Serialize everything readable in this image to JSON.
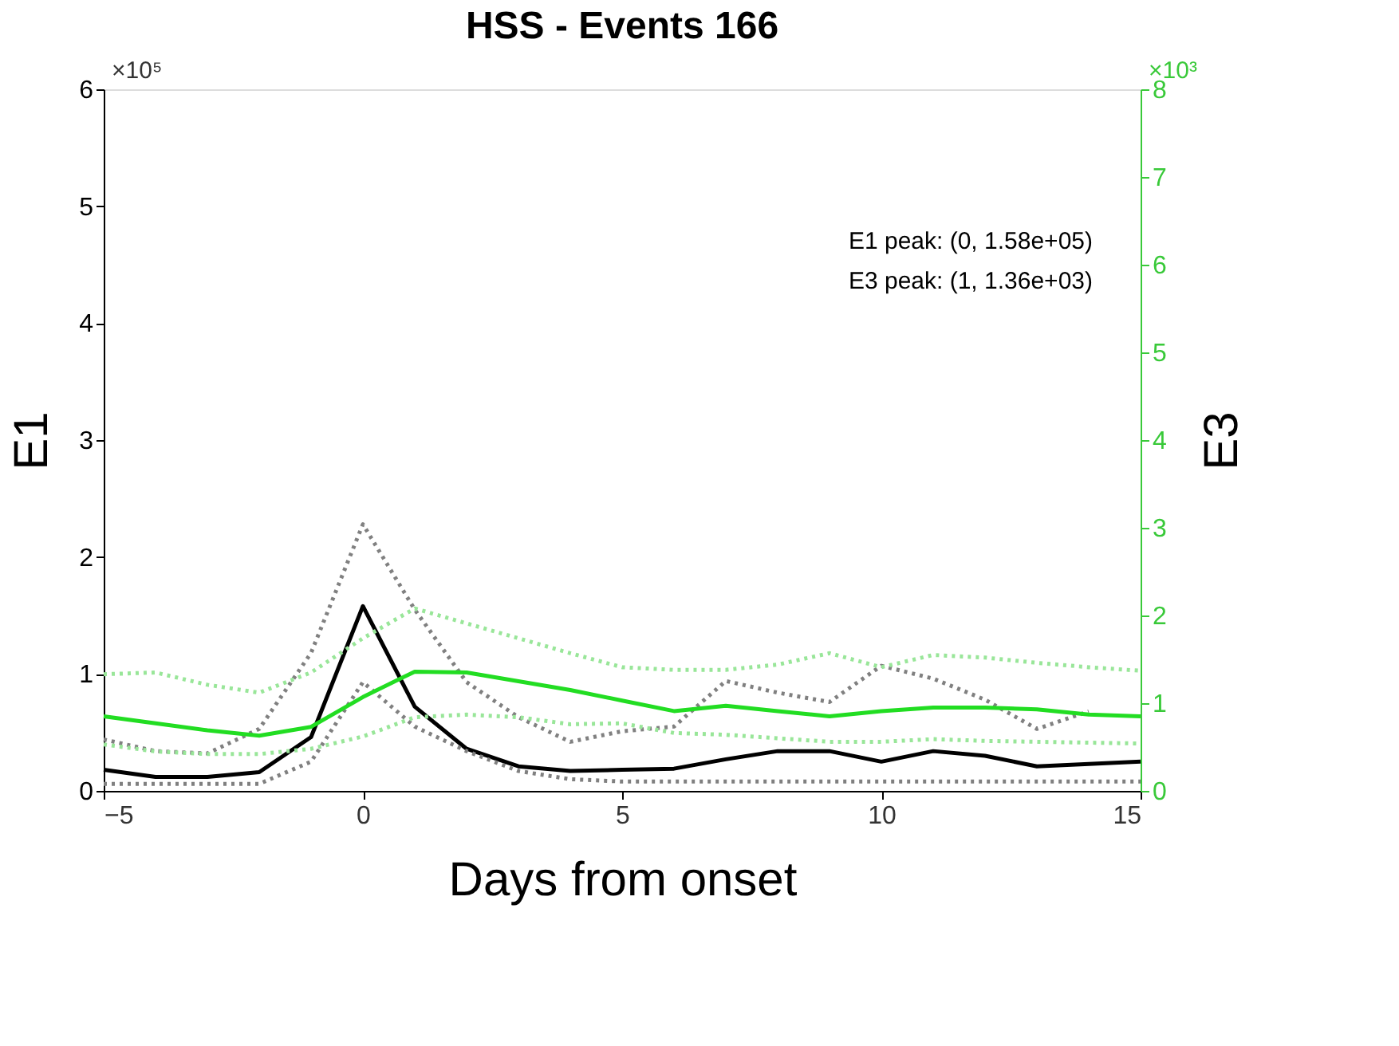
{
  "chart_data": {
    "type": "line",
    "title": "HSS - Events 166",
    "xlabel": "Days from onset",
    "ylabel": "E1",
    "y2label": "E3",
    "annotations": [
      "E1 peak: (0, 1.58e+05)",
      "E3 peak: (1, 1.36e+03)",
      "×10⁵",
      "×10³"
    ],
    "x": [
      -5,
      -4,
      -3,
      -2,
      -1,
      0,
      1,
      2,
      3,
      4,
      5,
      6,
      7,
      8,
      9,
      10,
      11,
      12,
      13,
      14,
      15
    ],
    "xlim": [
      -5,
      15
    ],
    "xticks": [
      -5,
      0,
      5,
      10,
      15
    ],
    "ylim": [
      0,
      6
    ],
    "yticks": [
      0,
      1,
      2,
      3,
      4,
      5,
      6
    ],
    "y2lim": [
      0,
      8
    ],
    "y2ticks": [
      0,
      1,
      2,
      3,
      4,
      5,
      6,
      7,
      8
    ],
    "grid": false,
    "series": [
      {
        "color": "#808080",
        "line_style": "dotted",
        "values": [
          0.44,
          0.34,
          0.32,
          0.53,
          1.18,
          2.28,
          1.55,
          0.93,
          0.63,
          0.42,
          0.51,
          0.55,
          0.94,
          0.84,
          0.76,
          1.07,
          0.96,
          0.78,
          0.53,
          0.68,
          null
        ]
      },
      {
        "color": "#808080",
        "line_style": "dotted",
        "values": [
          0.06,
          0.06,
          0.06,
          0.06,
          0.25,
          0.93,
          0.55,
          0.34,
          0.17,
          0.1,
          0.08,
          0.08,
          0.08,
          0.08,
          0.08,
          0.08,
          0.08,
          0.08,
          0.08,
          0.08,
          0.08
        ]
      },
      {
        "color": "#99e699",
        "line_style": "dotted",
        "axis": "y2",
        "values": [
          1.33,
          1.35,
          1.21,
          1.12,
          1.35,
          1.74,
          2.08,
          1.91,
          1.74,
          1.57,
          1.41,
          1.38,
          1.38,
          1.44,
          1.57,
          1.41,
          1.55,
          1.52,
          1.46,
          1.41,
          1.37
        ]
      },
      {
        "color": "#99e699",
        "line_style": "dotted",
        "axis": "y2",
        "values": [
          0.53,
          0.45,
          0.42,
          0.42,
          0.48,
          0.62,
          0.84,
          0.87,
          0.84,
          0.76,
          0.77,
          0.66,
          0.64,
          0.6,
          0.56,
          0.56,
          0.59,
          0.57,
          0.56,
          0.55,
          0.54
        ]
      },
      {
        "color": "#000000",
        "line_style": "solid",
        "values": [
          0.18,
          0.12,
          0.12,
          0.16,
          0.46,
          1.58,
          0.72,
          0.36,
          0.21,
          0.17,
          0.18,
          0.19,
          0.27,
          0.34,
          0.34,
          0.25,
          0.34,
          0.3,
          0.21,
          0.23,
          0.25
        ]
      },
      {
        "color": "#22dd22",
        "line_style": "solid",
        "axis": "y2",
        "values": [
          0.85,
          0.77,
          0.69,
          0.63,
          0.73,
          1.07,
          1.36,
          1.35,
          1.25,
          1.15,
          1.03,
          0.91,
          0.97,
          0.91,
          0.85,
          0.91,
          0.95,
          0.95,
          0.93,
          0.87,
          0.85
        ]
      }
    ]
  }
}
